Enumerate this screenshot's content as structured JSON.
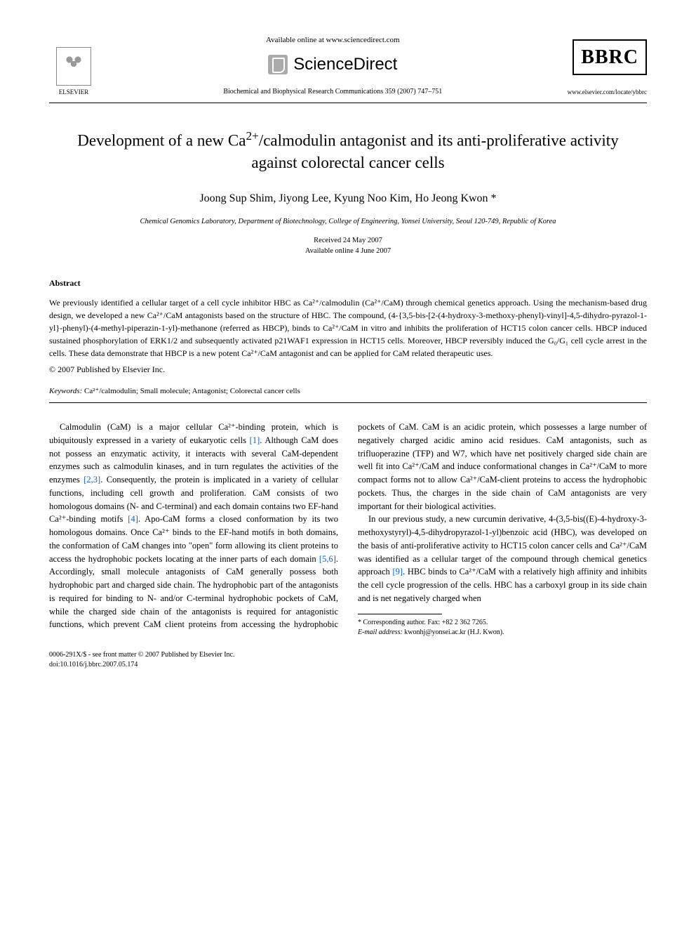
{
  "header": {
    "available_online": "Available online at www.sciencedirect.com",
    "sciencedirect": "ScienceDirect",
    "elsevier_label": "ELSEVIER",
    "journal_ref": "Biochemical and Biophysical Research Communications 359 (2007) 747–751",
    "bbrc": "BBRC",
    "journal_url": "www.elsevier.com/locate/ybbrc"
  },
  "article": {
    "title_pre": "Development of a new Ca",
    "title_sup": "2+",
    "title_post": "/calmodulin antagonist and its anti-proliferative activity against colorectal cancer cells",
    "authors": "Joong Sup Shim, Jiyong Lee, Kyung Noo Kim, Ho Jeong Kwon *",
    "affiliation": "Chemical Genomics Laboratory, Department of Biotechnology, College of Engineering, Yonsei University, Seoul 120-749, Republic of Korea",
    "received": "Received 24 May 2007",
    "available": "Available online 4 June 2007"
  },
  "abstract": {
    "heading": "Abstract",
    "text": "We previously identified a cellular target of a cell cycle inhibitor HBC as Ca²⁺/calmodulin (Ca²⁺/CaM) through chemical genetics approach. Using the mechanism-based drug design, we developed a new Ca²⁺/CaM antagonists based on the structure of HBC. The compound, (4-{3,5-bis-[2-(4-hydroxy-3-methoxy-phenyl)-vinyl]-4,5-dihydro-pyrazol-1-yl}-phenyl)-(4-methyl-piperazin-1-yl)-methanone (referred as HBCP), binds to Ca²⁺/CaM in vitro and inhibits the proliferation of HCT15 colon cancer cells. HBCP induced sustained phosphorylation of ERK1/2 and subsequently activated p21WAF1 expression in HCT15 cells. Moreover, HBCP reversibly induced the G₀/G₁ cell cycle arrest in the cells. These data demonstrate that HBCP is a new potent Ca²⁺/CaM antagonist and can be applied for CaM related therapeutic uses.",
    "copyright": "© 2007 Published by Elsevier Inc."
  },
  "keywords": {
    "label": "Keywords:",
    "text": " Ca²⁺/calmodulin; Small molecule; Antagonist; Colorectal cancer cells"
  },
  "body": {
    "p1a": "Calmodulin (CaM) is a major cellular Ca²⁺-binding protein, which is ubiquitously expressed in a variety of eukaryotic cells ",
    "c1": "[1]",
    "p1b": ". Although CaM does not possess an enzymatic activity, it interacts with several CaM-dependent enzymes such as calmodulin kinases, and in turn regulates the activities of the enzymes ",
    "c2": "[2,3]",
    "p1c": ". Consequently, the protein is implicated in a variety of cellular functions, including cell growth and proliferation. CaM consists of two homologous domains (N- and C-terminal) and each domain contains two EF-hand Ca²⁺-binding motifs ",
    "c3": "[4]",
    "p1d": ". Apo-CaM forms a closed conformation by its two homologous domains. Once Ca²⁺ binds to the EF-hand motifs in both domains, the conformation of CaM changes into \"open\" form allowing its client proteins to access the hydrophobic pockets locating at the inner parts of each domain ",
    "c4": "[5,6]",
    "p1e": ". Accordingly, small molecule antagonists of CaM generally possess both hydrophobic part and charged side chain. The hydrophobic part of the antagonists is required for binding to N- and/or C-terminal hydrophobic pockets of CaM, while the charged side chain of the antagonists is required for antagonistic functions, which prevent CaM client proteins from accessing the hydrophobic pockets of CaM. CaM is an acidic protein, which possesses a large number of negatively charged acidic amino acid residues. CaM antagonists, such as trifluoperazine (TFP) and W7, which have net positively charged side chain are well fit into Ca²⁺/CaM and induce conformational changes in Ca²⁺/CaM to more compact forms not to allow Ca²⁺/CaM-client proteins to access the hydrophobic pockets. Thus, the charges in the side chain of CaM antagonists are very important for their biological activities.",
    "p2a": "In our previous study, a new curcumin derivative, 4-(3,5-bis((E)-4-hydroxy-3-methoxystyryl)-4,5-dihydropyrazol-1-yl)benzoic acid (HBC), was developed on the basis of anti-proliferative activity to HCT15 colon cancer cells and Ca²⁺/CaM was identified as a cellular target of the compound through chemical genetics approach ",
    "c5": "[9]",
    "p2b": ". HBC binds to Ca²⁺/CaM with a relatively high affinity and inhibits the cell cycle progression of the cells. HBC has a carboxyl group in its side chain and is net negatively charged when"
  },
  "footnote": {
    "corr": "* Corresponding author. Fax: +82 2 362 7265.",
    "email_label": "E-mail address:",
    "email": " kwonhj@yonsei.ac.kr ",
    "email_suffix": "(H.J. Kwon)."
  },
  "footer": {
    "line1": "0006-291X/$ - see front matter © 2007 Published by Elsevier Inc.",
    "line2": "doi:10.1016/j.bbrc.2007.05.174"
  }
}
